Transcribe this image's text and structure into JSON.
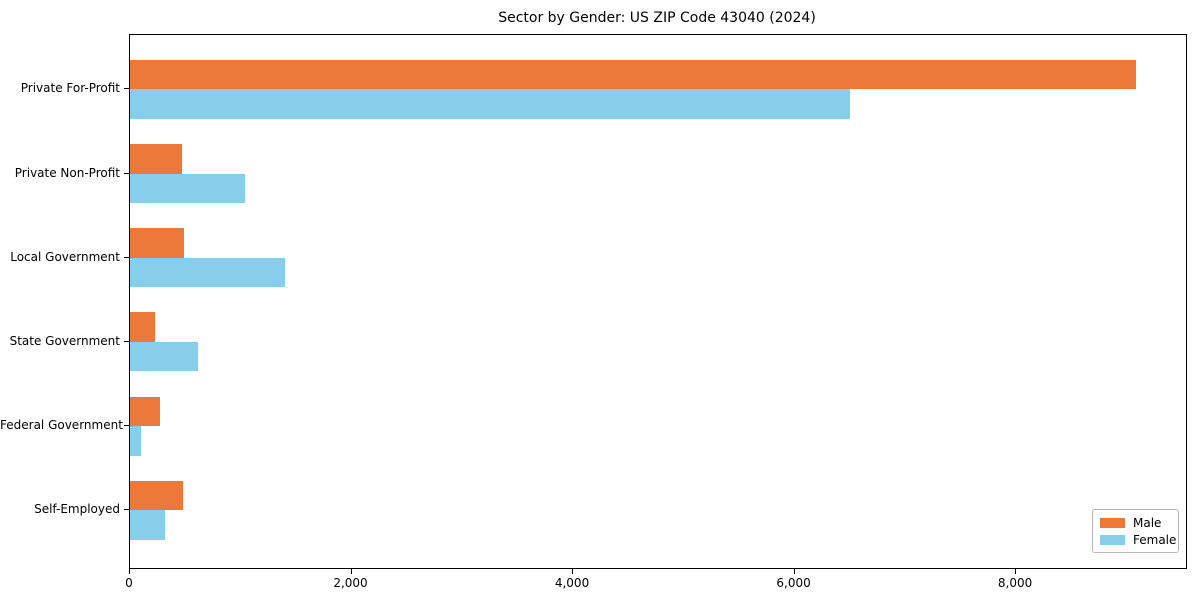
{
  "page": {
    "title": "Sector by Gender: US ZIP Code 43040 (2024)"
  },
  "chart_data": {
    "type": "bar",
    "orientation": "horizontal",
    "title": "Sector by Gender: US ZIP Code 43040 (2024)",
    "categories": [
      "Private For-Profit",
      "Private Non-Profit",
      "Local Government",
      "State Government",
      "Federal Government",
      "Self-Employed"
    ],
    "series": [
      {
        "name": "Male",
        "color": "#ec7839",
        "values": [
          9080,
          470,
          490,
          225,
          270,
          480
        ]
      },
      {
        "name": "Female",
        "color": "#87ceeb",
        "values": [
          6500,
          1040,
          1400,
          610,
          95,
          315
        ]
      }
    ],
    "xlabel": "",
    "ylabel": "",
    "xlim": [
      0,
      9534
    ],
    "xticks": {
      "values": [
        0,
        2000,
        4000,
        6000,
        8000
      ],
      "labels": [
        "0",
        "2,000",
        "4,000",
        "6,000",
        "8,000"
      ]
    },
    "grid": false,
    "legend": {
      "position": "lower right",
      "labels": [
        "Male",
        "Female"
      ]
    },
    "colors": {
      "male": "#ec7839",
      "female": "#87ceeb",
      "spine": "#000000",
      "background": "#ffffff"
    }
  }
}
